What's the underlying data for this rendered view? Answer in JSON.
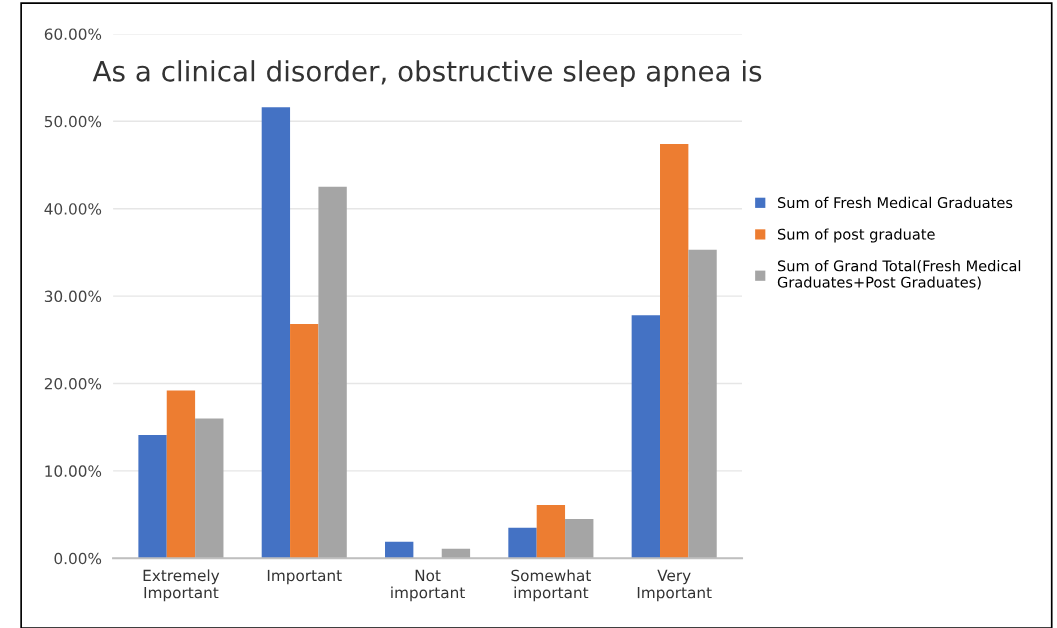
{
  "chart_data": {
    "type": "bar",
    "title": "As a clinical disorder, obstructive sleep apnea is",
    "categories": [
      "Extremely\nImportant",
      "Important",
      "Not\nimportant",
      "Somewhat\nimportant",
      "Very\nImportant"
    ],
    "series": [
      {
        "name": "Sum of Fresh Medical Graduates",
        "color": "#4472c4",
        "values": [
          0.141,
          0.516,
          0.019,
          0.035,
          0.278
        ]
      },
      {
        "name": "Sum of post graduate",
        "color": "#ed7d31",
        "values": [
          0.192,
          0.268,
          null,
          0.061,
          0.474
        ]
      },
      {
        "name": "Sum of Grand Total(Fresh Medical\nGraduates+Post Graduates)",
        "color": "#a5a5a5",
        "values": [
          0.16,
          0.425,
          0.011,
          0.045,
          0.353
        ]
      }
    ],
    "ylim": [
      0,
      0.6
    ],
    "yticks": [
      {
        "value": 0,
        "label": "0.00%"
      },
      {
        "value": 0.1,
        "label": "10.00%"
      },
      {
        "value": 0.2,
        "label": "20.00%"
      },
      {
        "value": 0.3,
        "label": "30.00%"
      },
      {
        "value": 0.4,
        "label": "40.00%"
      },
      {
        "value": 0.5,
        "label": "50.00%"
      },
      {
        "value": 0.6,
        "label": "60.00%"
      }
    ],
    "grid": "y",
    "legend": "right"
  }
}
